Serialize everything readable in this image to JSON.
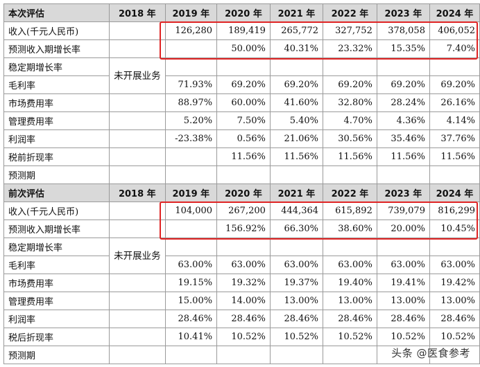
{
  "sections": [
    {
      "title": "本次评估",
      "years": [
        "2018 年",
        "2019 年",
        "2020 年",
        "2021 年",
        "2022 年",
        "2023 年",
        "2024 年"
      ],
      "not_started": "未开展业务",
      "rows": [
        {
          "label": "收入(千元人民币)",
          "values": [
            "126,280",
            "189,419",
            "265,772",
            "327,752",
            "378,058",
            "406,052"
          ]
        },
        {
          "label": "预测收入期增长率",
          "values": [
            "",
            "50.00%",
            "40.31%",
            "23.32%",
            "15.35%",
            "7.40%"
          ]
        },
        {
          "label": "稳定期增长率",
          "values": [
            "",
            "",
            "",
            "",
            "",
            ""
          ]
        },
        {
          "label": "毛利率",
          "values": [
            "71.93%",
            "69.20%",
            "69.20%",
            "69.20%",
            "69.20%",
            "69.20%"
          ]
        },
        {
          "label": "市场费用率",
          "values": [
            "88.97%",
            "60.00%",
            "41.60%",
            "32.80%",
            "28.24%",
            "26.16%"
          ]
        },
        {
          "label": "管理费用率",
          "values": [
            "5.20%",
            "7.50%",
            "5.40%",
            "4.70%",
            "4.36%",
            "4.14%"
          ]
        },
        {
          "label": "利润率",
          "values": [
            "-23.38%",
            "0.56%",
            "21.06%",
            "30.56%",
            "35.46%",
            "37.76%"
          ]
        },
        {
          "label": "税前折现率",
          "values": [
            "",
            "11.56%",
            "11.56%",
            "11.56%",
            "11.56%",
            "11.56%"
          ]
        },
        {
          "label": "预测期",
          "values": [
            "",
            "",
            "",
            "",
            "",
            ""
          ]
        }
      ]
    },
    {
      "title": "前次评估",
      "years": [
        "2018 年",
        "2019 年",
        "2020 年",
        "2021 年",
        "2022 年",
        "2023 年",
        "2024 年"
      ],
      "not_started": "未开展业务",
      "rows": [
        {
          "label": "收入(千元人民币)",
          "values": [
            "104,000",
            "267,200",
            "444,364",
            "615,892",
            "739,079",
            "816,299"
          ]
        },
        {
          "label": "预测收入期增长率",
          "values": [
            "",
            "156.92%",
            "66.30%",
            "38.60%",
            "20.00%",
            "10.45%"
          ]
        },
        {
          "label": "稳定期增长率",
          "values": [
            "",
            "",
            "",
            "",
            "",
            ""
          ]
        },
        {
          "label": "毛利率",
          "values": [
            "63.00%",
            "63.00%",
            "63.00%",
            "63.00%",
            "63.00%",
            "63.00%"
          ]
        },
        {
          "label": "市场费用率",
          "values": [
            "19.15%",
            "19.32%",
            "19.37%",
            "19.40%",
            "19.41%",
            "19.42%"
          ]
        },
        {
          "label": "管理费用率",
          "values": [
            "15.00%",
            "14.00%",
            "13.00%",
            "13.00%",
            "13.00%",
            "13.00%"
          ]
        },
        {
          "label": "利润率",
          "values": [
            "28.46%",
            "28.46%",
            "28.46%",
            "28.46%",
            "28.46%",
            "28.46%"
          ]
        },
        {
          "label": "税后折现率",
          "values": [
            "10.41%",
            "10.52%",
            "10.52%",
            "10.52%",
            "10.52%",
            "10.52%"
          ]
        },
        {
          "label": "预测期",
          "values": [
            "",
            "",
            "",
            "",
            "",
            ""
          ]
        }
      ]
    }
  ],
  "watermark": "头条 @医食参考",
  "colors": {
    "header_bg": "#d9d9d9",
    "border": "#9a9a9a",
    "highlight": "#e02424"
  }
}
